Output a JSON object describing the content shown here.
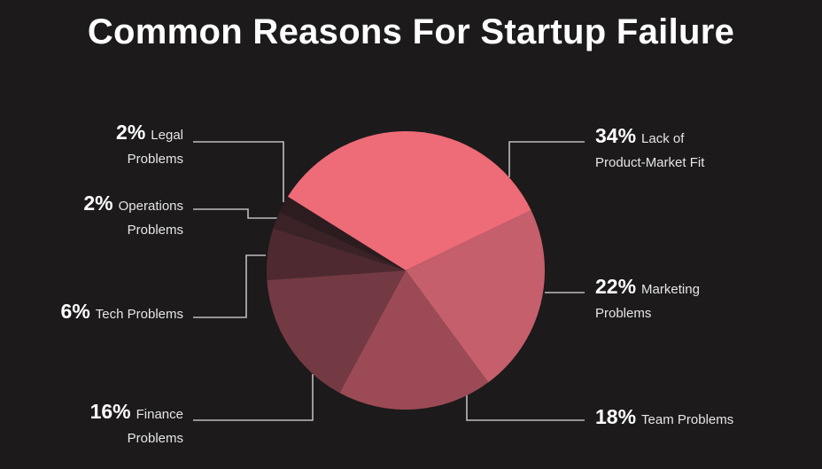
{
  "chart_data": {
    "type": "pie",
    "title": "Common Reasons For Startup Failure",
    "categories": [
      "Lack of Product-Market Fit",
      "Marketing Problems",
      "Team Problems",
      "Finance Problems",
      "Tech Problems",
      "Operations Problems",
      "Legal Problems"
    ],
    "values": [
      34,
      22,
      18,
      16,
      6,
      2,
      2
    ],
    "value_labels": [
      "34%",
      "22%",
      "18%",
      "16%",
      "6%",
      "2%",
      "2%"
    ],
    "colors": [
      "#ee6b78",
      "#c55f6c",
      "#9c4a55",
      "#743a43",
      "#4e2a30",
      "#3a2226",
      "#2c1c1f"
    ]
  }
}
